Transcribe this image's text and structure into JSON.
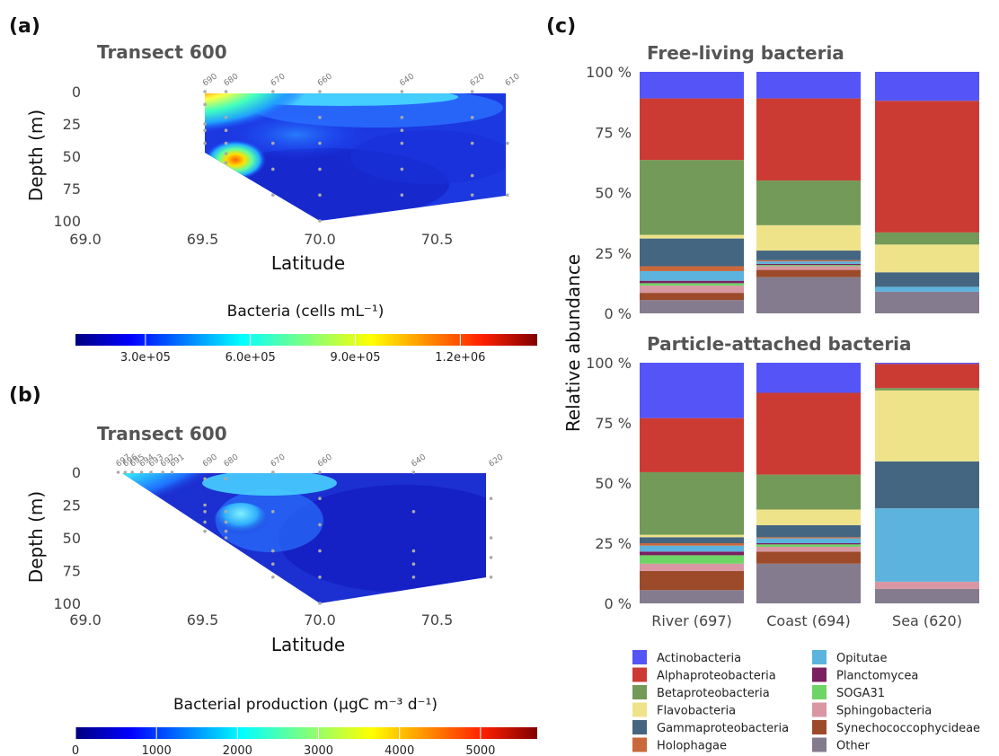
{
  "panels": {
    "a": "(a)",
    "b": "(b)",
    "c": "(c)"
  },
  "chart_data": [
    {
      "type": "heatmap",
      "title": "Transect 600",
      "xlabel": "Latitude",
      "ylabel": "Depth (m)",
      "x_ticks": [
        "69.0",
        "69.5",
        "70.0",
        "70.5"
      ],
      "y_ticks": [
        "0",
        "25",
        "50",
        "75",
        "100"
      ],
      "xlim": [
        69.0,
        70.85
      ],
      "ylim": [
        100,
        0
      ],
      "stations": [
        {
          "id": "690",
          "lat": 69.51
        },
        {
          "id": "680",
          "lat": 69.6
        },
        {
          "id": "670",
          "lat": 69.8
        },
        {
          "id": "660",
          "lat": 70.0
        },
        {
          "id": "640",
          "lat": 70.35
        },
        {
          "id": "620",
          "lat": 70.65
        },
        {
          "id": "610",
          "lat": 70.8
        }
      ],
      "colorbar": {
        "title": "Bacteria (cells mL⁻¹)",
        "ticks": [
          "3.0e+05",
          "6.0e+05",
          "9.0e+05",
          "1.2e+06"
        ],
        "tick_values": [
          300000,
          600000,
          900000,
          1200000
        ],
        "range": [
          100000,
          1420000
        ]
      }
    },
    {
      "type": "heatmap",
      "title": "Transect 600",
      "xlabel": "Latitude",
      "ylabel": "Depth (m)",
      "x_ticks": [
        "69.0",
        "69.5",
        "70.0",
        "70.5"
      ],
      "y_ticks": [
        "0",
        "25",
        "50",
        "75",
        "100"
      ],
      "xlim": [
        69.0,
        70.85
      ],
      "ylim": [
        100,
        0
      ],
      "stations": [
        {
          "id": "697",
          "lat": 69.14
        },
        {
          "id": "696",
          "lat": 69.17
        },
        {
          "id": "695",
          "lat": 69.2
        },
        {
          "id": "694",
          "lat": 69.24
        },
        {
          "id": "693",
          "lat": 69.28
        },
        {
          "id": "692",
          "lat": 69.33
        },
        {
          "id": "691",
          "lat": 69.37
        },
        {
          "id": "690",
          "lat": 69.51
        },
        {
          "id": "680",
          "lat": 69.6
        },
        {
          "id": "670",
          "lat": 69.8
        },
        {
          "id": "660",
          "lat": 70.0
        },
        {
          "id": "640",
          "lat": 70.4
        },
        {
          "id": "620",
          "lat": 70.73
        }
      ],
      "colorbar": {
        "title": "Bacterial production (µgC m⁻³ d⁻¹)",
        "ticks": [
          "0",
          "1000",
          "2000",
          "3000",
          "4000",
          "5000"
        ],
        "tick_values": [
          0,
          1000,
          2000,
          3000,
          4000,
          5000
        ],
        "range": [
          0,
          5700
        ]
      }
    },
    {
      "type": "bar",
      "stacked": true,
      "ylabel": "Relative abundance",
      "y_ticks": [
        "0 %",
        "25 %",
        "50 %",
        "75 %",
        "100 %"
      ],
      "ylim": [
        0,
        100
      ],
      "categories": [
        "River (697)",
        "Coast (694)",
        "Sea (620)"
      ],
      "classes": [
        {
          "name": "Other",
          "color": "#847b8e"
        },
        {
          "name": "Synechococcophycideae",
          "color": "#9c4a2a"
        },
        {
          "name": "Sphingobacteria",
          "color": "#d897a3"
        },
        {
          "name": "SOGA31",
          "color": "#6fd466"
        },
        {
          "name": "Planctomycea",
          "color": "#7a2060"
        },
        {
          "name": "Opitutae",
          "color": "#5cb3de"
        },
        {
          "name": "Holophagae",
          "color": "#c9683a"
        },
        {
          "name": "Gammaproteobacteria",
          "color": "#456681"
        },
        {
          "name": "Flavobacteria",
          "color": "#efe38a"
        },
        {
          "name": "Betaproteobacteria",
          "color": "#739a58"
        },
        {
          "name": "Alphaproteobacteria",
          "color": "#cc3b33"
        },
        {
          "name": "Actinobacteria",
          "color": "#5454f7"
        }
      ],
      "groups": [
        {
          "title": "Free-living bacteria",
          "stacks": [
            [
              5.5,
              3,
              3,
              1,
              1,
              4,
              2,
              11.5,
              1.5,
              31,
              25.5,
              11
            ],
            [
              15,
              3,
              1.5,
              0.5,
              0.5,
              1,
              0.5,
              4,
              10.5,
              18.5,
              34,
              11
            ],
            [
              9,
              0,
              0,
              0,
              0,
              2,
              0,
              6,
              11.5,
              5,
              54.5,
              12
            ]
          ]
        },
        {
          "title": "Particle-attached bacteria",
          "stacks": [
            [
              5.5,
              8,
              3,
              3.5,
              1.5,
              2.5,
              1,
              2.5,
              1,
              26,
              22.5,
              23
            ],
            [
              16.5,
              5,
              2,
              1,
              0.5,
              2,
              0.5,
              5,
              6.5,
              14.5,
              34,
              12.5
            ],
            [
              6,
              0,
              3,
              0,
              0,
              30.5,
              0,
              19.5,
              29.5,
              1,
              10,
              0.5
            ]
          ]
        }
      ],
      "legend": [
        "Actinobacteria",
        "Alphaproteobacteria",
        "Betaproteobacteria",
        "Flavobacteria",
        "Gammaproteobacteria",
        "Holophagae",
        "Opitutae",
        "Planctomycea",
        "SOGA31",
        "Sphingobacteria",
        "Synechococcophycideae",
        "Other"
      ]
    }
  ]
}
